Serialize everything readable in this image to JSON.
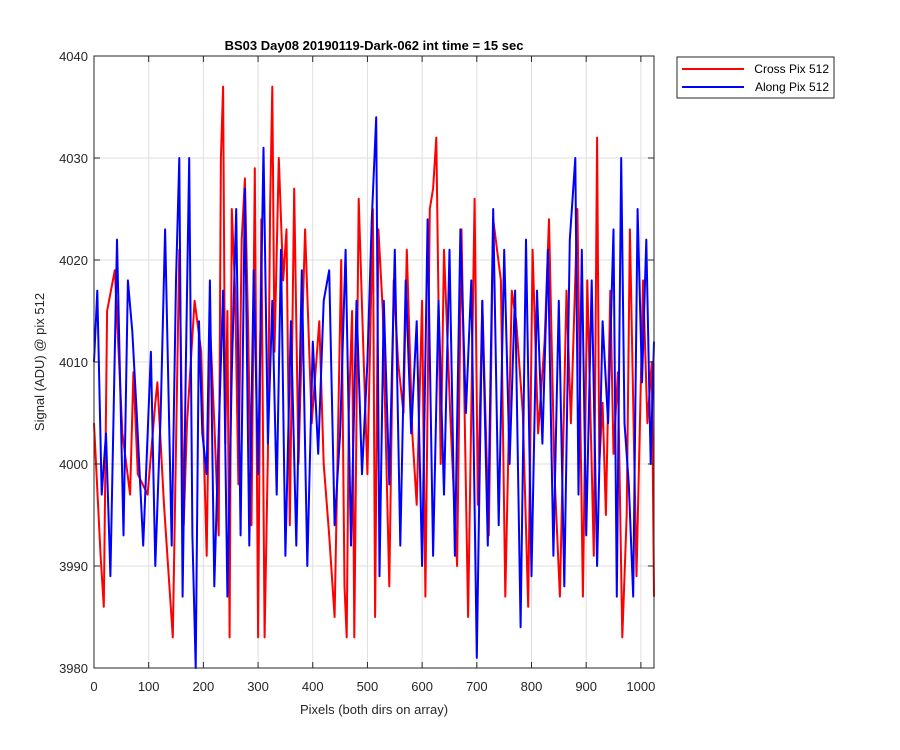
{
  "chart_data": {
    "type": "line",
    "title": "BS03 Day08 20190119-Dark-062 int time = 15 sec",
    "xlabel": "Pixels (both dirs on array)",
    "ylabel": "Signal (ADU) @ pix 512",
    "xlim": [
      0,
      1024
    ],
    "ylim": [
      3980,
      4040
    ],
    "xticks": [
      0,
      100,
      200,
      300,
      400,
      500,
      600,
      700,
      800,
      900,
      1000
    ],
    "yticks": [
      3980,
      3990,
      4000,
      4010,
      4020,
      4030,
      4040
    ],
    "grid": true,
    "legend_position": "outside-top-right",
    "series": [
      {
        "name": "Cross Pix 512",
        "color": "#ff0000",
        "x": [
          0,
          12,
          18,
          24,
          38,
          52,
          66,
          72,
          80,
          98,
          112,
          116,
          128,
          144,
          156,
          164,
          170,
          184,
          196,
          206,
          212,
          220,
          228,
          232,
          236,
          240,
          244,
          248,
          252,
          258,
          264,
          270,
          276,
          282,
          288,
          294,
          300,
          306,
          312,
          318,
          322,
          326,
          330,
          338,
          346,
          352,
          358,
          366,
          374,
          380,
          386,
          398,
          412,
          420,
          430,
          440,
          452,
          458,
          462,
          466,
          472,
          476,
          484,
          492,
          500,
          510,
          514,
          520,
          528,
          540,
          548,
          556,
          566,
          572,
          582,
          590,
          600,
          606,
          614,
          620,
          626,
          634,
          640,
          652,
          664,
          672,
          684,
          696,
          702,
          710,
          722,
          730,
          744,
          752,
          764,
          772,
          784,
          794,
          802,
          812,
          824,
          832,
          842,
          852,
          864,
          872,
          884,
          894,
          902,
          914,
          920,
          924,
          930,
          936,
          944,
          950,
          958,
          966,
          974,
          980,
          992,
          1004,
          1012,
          1020,
          1024
        ],
        "y": [
          4004,
          3991,
          3986,
          4015,
          4019,
          4003,
          3997,
          4009,
          3999,
          3997,
          4006,
          4008,
          3996,
          3983,
          4021,
          3994,
          4004,
          4016,
          4011,
          3991,
          4014,
          4004,
          3993,
          4030,
          4037,
          4002,
          4015,
          3983,
          4025,
          4017,
          3998,
          4022,
          4028,
          4013,
          3994,
          4029,
          3983,
          4024,
          3983,
          4001,
          4025,
          4037,
          4011,
          4030,
          4018,
          4023,
          3994,
          4027,
          4000,
          4012,
          4023,
          4004,
          4014,
          4000,
          3993,
          3985,
          4020,
          3988,
          3983,
          4005,
          4015,
          3983,
          4026,
          4012,
          3999,
          4025,
          3985,
          4023,
          4015,
          3988,
          4018,
          4010,
          4005,
          4021,
          4003,
          3996,
          4016,
          3987,
          4025,
          4027,
          4032,
          4000,
          4021,
          4004,
          3990,
          4023,
          3985,
          4026,
          3996,
          4016,
          3993,
          4024,
          4018,
          3987,
          4017,
          4014,
          4005,
          3986,
          4021,
          4003,
          4012,
          4024,
          3999,
          3987,
          4017,
          4004,
          4025,
          3987,
          4018,
          3991,
          4032,
          4000,
          4006,
          3995,
          4017,
          4001,
          4009,
          3983,
          3995,
          4023,
          3989,
          4018,
          4004,
          4010,
          3987
        ]
      },
      {
        "name": "Along Pix 512",
        "color": "#0000ff",
        "x": [
          0,
          6,
          14,
          22,
          30,
          42,
          54,
          62,
          70,
          78,
          90,
          104,
          112,
          122,
          130,
          142,
          150,
          156,
          162,
          168,
          174,
          180,
          186,
          192,
          198,
          206,
          212,
          220,
          228,
          236,
          244,
          252,
          260,
          268,
          276,
          284,
          292,
          300,
          310,
          318,
          326,
          334,
          342,
          350,
          360,
          370,
          380,
          390,
          400,
          410,
          420,
          430,
          440,
          450,
          460,
          470,
          480,
          490,
          500,
          508,
          516,
          522,
          530,
          540,
          550,
          560,
          570,
          580,
          590,
          600,
          610,
          620,
          630,
          640,
          650,
          660,
          670,
          680,
          690,
          700,
          710,
          720,
          730,
          740,
          750,
          760,
          770,
          780,
          790,
          800,
          810,
          820,
          830,
          840,
          850,
          860,
          870,
          880,
          886,
          892,
          900,
          910,
          920,
          930,
          940,
          950,
          956,
          964,
          970,
          978,
          986,
          994,
          1002,
          1010,
          1018,
          1024
        ],
        "y": [
          4010,
          4017,
          3997,
          4003,
          3989,
          4022,
          3993,
          4018,
          4013,
          4005,
          3992,
          4011,
          3990,
          4005,
          4023,
          3992,
          4018,
          4030,
          3987,
          4010,
          4030,
          3993,
          3980,
          4014,
          4003,
          3999,
          4018,
          3988,
          4003,
          4017,
          3987,
          4009,
          4025,
          3993,
          4027,
          3992,
          4019,
          3999,
          4031,
          4002,
          4016,
          3997,
          4021,
          3991,
          4014,
          3992,
          4019,
          3990,
          4012,
          4001,
          4016,
          4019,
          3994,
          4003,
          4021,
          3992,
          4016,
          3999,
          4010,
          4024,
          4034,
          3989,
          4016,
          3998,
          4021,
          3992,
          4018,
          4003,
          4014,
          3990,
          4024,
          3991,
          4016,
          3997,
          4021,
          3991,
          4023,
          4005,
          4018,
          3981,
          4016,
          3992,
          4025,
          3994,
          4021,
          4000,
          4017,
          3984,
          4022,
          3989,
          4017,
          4002,
          4021,
          3991,
          4016,
          3988,
          4022,
          4030,
          3997,
          4021,
          3993,
          4018,
          3990,
          4014,
          4004,
          4023,
          3987,
          4030,
          4004,
          3998,
          3987,
          4025,
          4008,
          4022,
          4000,
          4012
        ]
      }
    ]
  }
}
